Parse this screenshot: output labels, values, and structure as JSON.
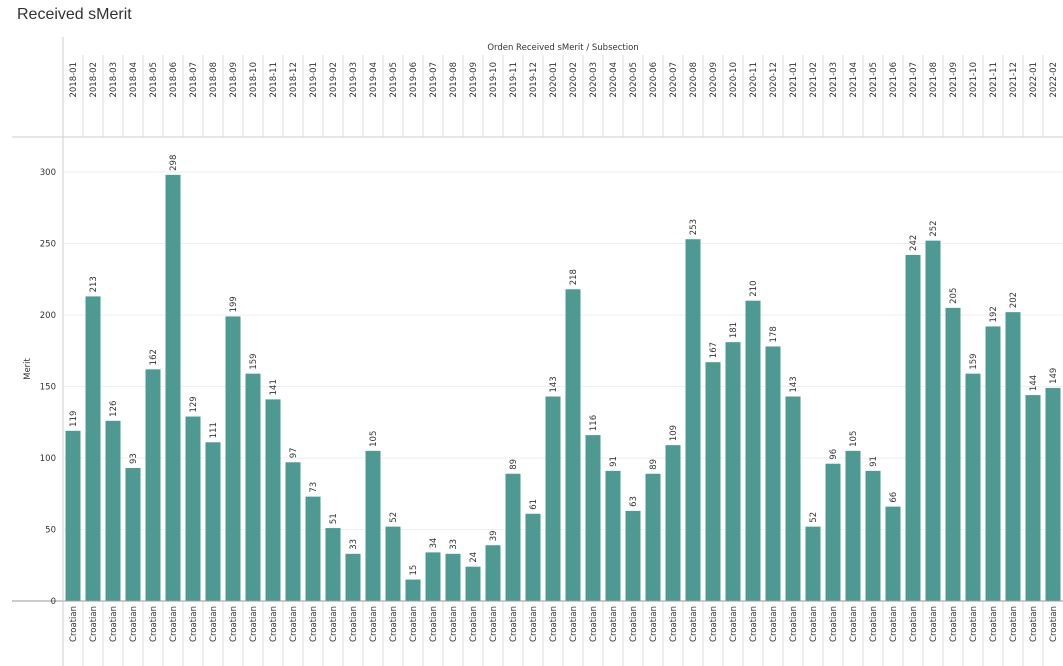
{
  "title": "Received sMerit",
  "chart_data": {
    "type": "bar",
    "column_header": "Orden Received sMerit / Subsection",
    "ylabel": "Merit",
    "ylim": [
      0,
      325
    ],
    "yticks": [
      0,
      50,
      100,
      150,
      200,
      250,
      300
    ],
    "bar_color": "#4e9a93",
    "subsection_label": "Croatian",
    "categories": [
      "2018-01",
      "2018-02",
      "2018-03",
      "2018-04",
      "2018-05",
      "2018-06",
      "2018-07",
      "2018-08",
      "2018-09",
      "2018-10",
      "2018-11",
      "2018-12",
      "2019-01",
      "2019-02",
      "2019-03",
      "2019-04",
      "2019-05",
      "2019-06",
      "2019-07",
      "2019-08",
      "2019-09",
      "2019-10",
      "2019-11",
      "2019-12",
      "2020-01",
      "2020-02",
      "2020-03",
      "2020-04",
      "2020-05",
      "2020-06",
      "2020-07",
      "2020-08",
      "2020-09",
      "2020-10",
      "2020-11",
      "2020-12",
      "2021-01",
      "2021-02",
      "2021-03",
      "2021-04",
      "2021-05",
      "2021-06",
      "2021-07",
      "2021-08",
      "2021-09",
      "2021-10",
      "2021-11",
      "2021-12",
      "2022-01",
      "2022-02"
    ],
    "values": [
      119,
      213,
      126,
      93,
      162,
      298,
      129,
      111,
      199,
      159,
      141,
      97,
      73,
      51,
      33,
      105,
      52,
      15,
      34,
      33,
      24,
      39,
      89,
      61,
      143,
      218,
      116,
      91,
      63,
      89,
      109,
      253,
      167,
      181,
      210,
      178,
      143,
      52,
      96,
      105,
      91,
      66,
      242,
      252,
      205,
      159,
      192,
      202,
      144,
      149
    ]
  }
}
